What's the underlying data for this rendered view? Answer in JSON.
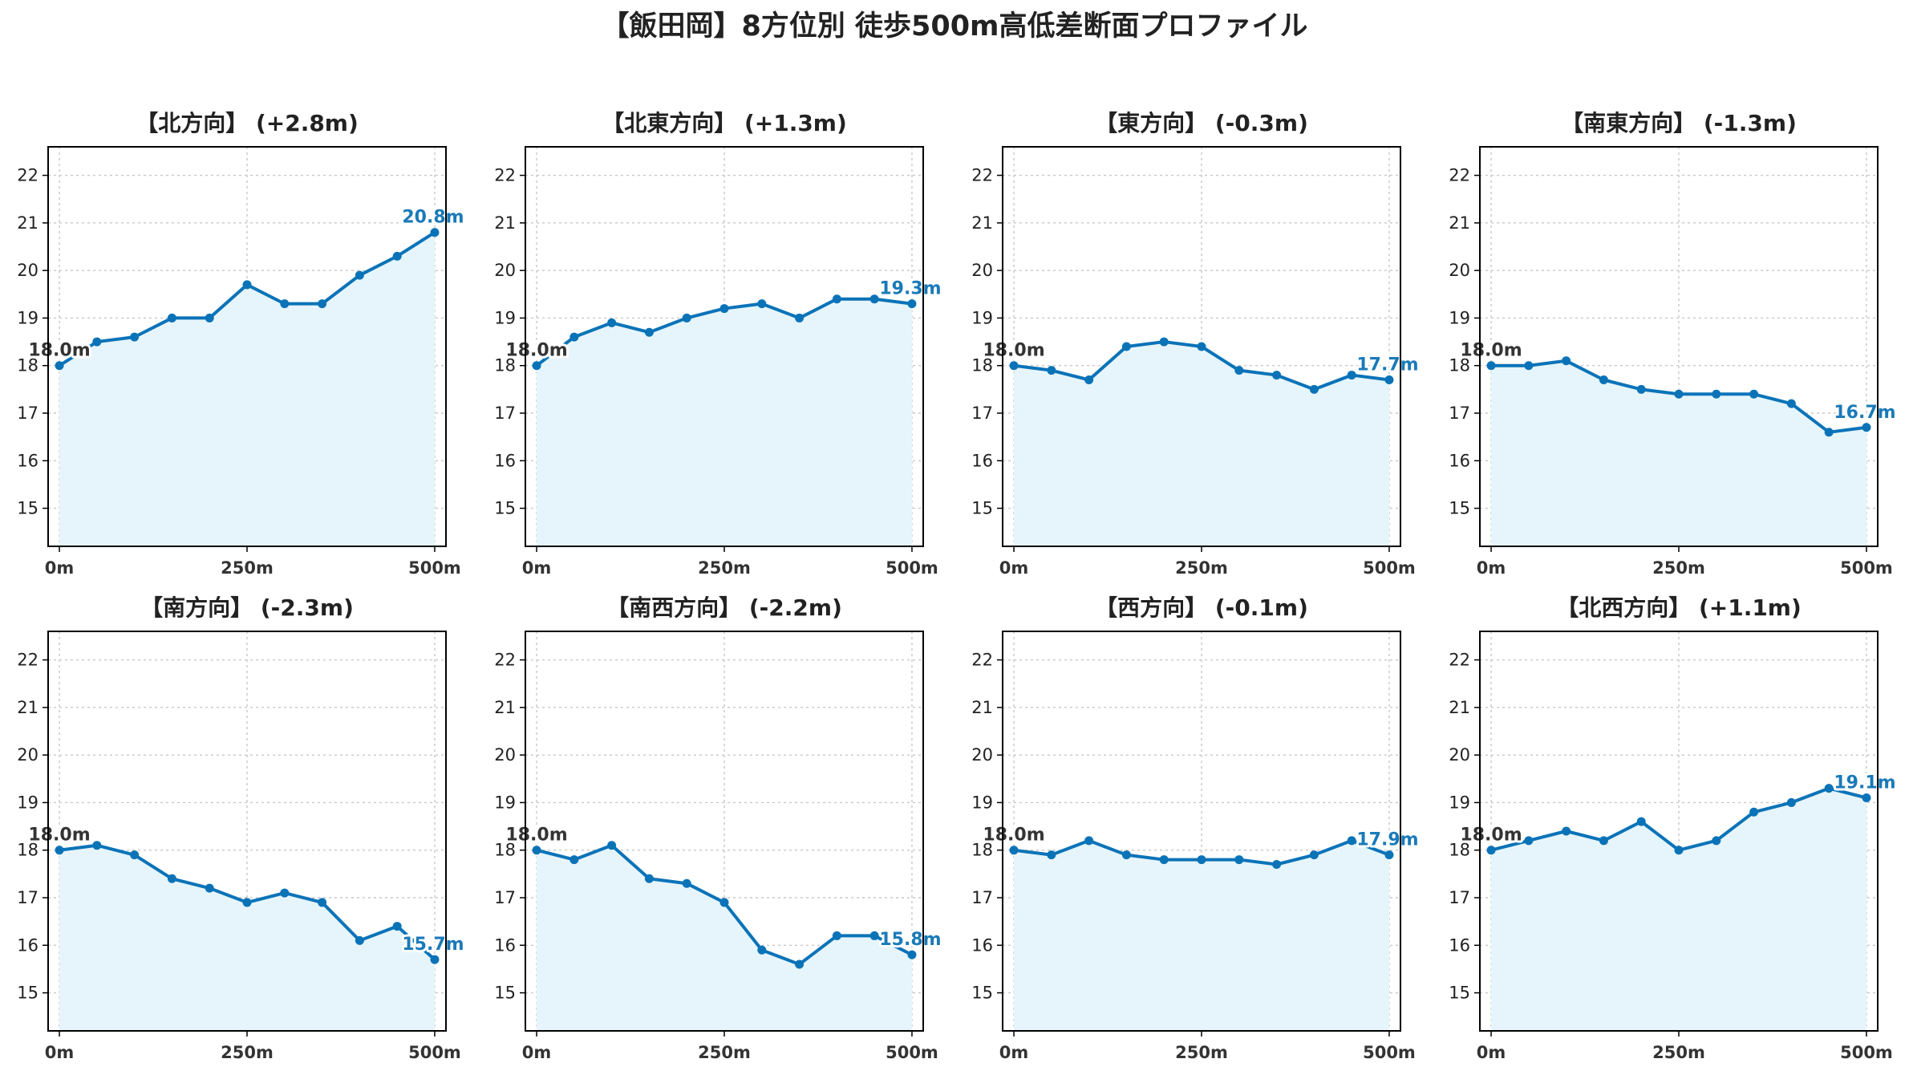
{
  "chart_data": {
    "type": "line",
    "title": "【飯田岡】8方位別 徒歩500m高低差断面プロファイル",
    "x": [
      0,
      50,
      100,
      150,
      200,
      250,
      300,
      350,
      400,
      450,
      500
    ],
    "xticks": [
      0,
      250,
      500
    ],
    "xtick_labels": [
      "0m",
      "250m",
      "500m"
    ],
    "xlim": [
      -15,
      515
    ],
    "ylim": [
      14.2,
      22.6
    ],
    "yticks": [
      15,
      16,
      17,
      18,
      19,
      20,
      21,
      22
    ],
    "grid": true,
    "colors": {
      "line": "#0a73b8",
      "fill": "#e6f5fb",
      "end_label": "#1a7ab8",
      "start_label": "#333333"
    },
    "panels": [
      {
        "title": "【北方向】 (+2.8m)",
        "values": [
          18.0,
          18.5,
          18.6,
          19.0,
          19.0,
          19.7,
          19.3,
          19.3,
          19.9,
          20.3,
          20.8
        ],
        "start_label": "18.0m",
        "end_label": "20.8m"
      },
      {
        "title": "【北東方向】 (+1.3m)",
        "values": [
          18.0,
          18.6,
          18.9,
          18.7,
          19.0,
          19.2,
          19.3,
          19.0,
          19.4,
          19.4,
          19.3
        ],
        "start_label": "18.0m",
        "end_label": "19.3m"
      },
      {
        "title": "【東方向】 (-0.3m)",
        "values": [
          18.0,
          17.9,
          17.7,
          18.4,
          18.5,
          18.4,
          17.9,
          17.8,
          17.5,
          17.8,
          17.7
        ],
        "start_label": "18.0m",
        "end_label": "17.7m"
      },
      {
        "title": "【南東方向】 (-1.3m)",
        "values": [
          18.0,
          18.0,
          18.1,
          17.7,
          17.5,
          17.4,
          17.4,
          17.4,
          17.2,
          16.6,
          16.7
        ],
        "start_label": "18.0m",
        "end_label": "16.7m"
      },
      {
        "title": "【南方向】 (-2.3m)",
        "values": [
          18.0,
          18.1,
          17.9,
          17.4,
          17.2,
          16.9,
          17.1,
          16.9,
          16.1,
          16.4,
          15.7
        ],
        "start_label": "18.0m",
        "end_label": "15.7m"
      },
      {
        "title": "【南西方向】 (-2.2m)",
        "values": [
          18.0,
          17.8,
          18.1,
          17.4,
          17.3,
          16.9,
          15.9,
          15.6,
          16.2,
          16.2,
          15.8
        ],
        "start_label": "18.0m",
        "end_label": "15.8m"
      },
      {
        "title": "【西方向】 (-0.1m)",
        "values": [
          18.0,
          17.9,
          18.2,
          17.9,
          17.8,
          17.8,
          17.8,
          17.7,
          17.9,
          18.2,
          17.9
        ],
        "start_label": "18.0m",
        "end_label": "17.9m"
      },
      {
        "title": "【北西方向】 (+1.1m)",
        "values": [
          18.0,
          18.2,
          18.4,
          18.2,
          18.6,
          18.0,
          18.2,
          18.8,
          19.0,
          19.3,
          19.1
        ],
        "start_label": "18.0m",
        "end_label": "19.1m"
      }
    ]
  }
}
